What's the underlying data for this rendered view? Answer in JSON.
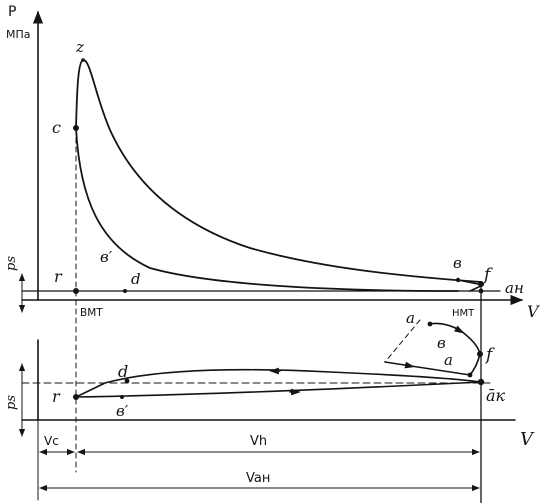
{
  "labels": {
    "p_axis": "P",
    "p_unit": "МПа",
    "v_axis_top": "V",
    "v_axis_bottom": "V",
    "z": "z",
    "c": "c",
    "r_top": "r",
    "b_prime_top": "в′",
    "d_top": "d",
    "b_top": "в",
    "f_top": "f",
    "a_n_top": "aн",
    "vmt": "ВМТ",
    "nmt": "НМТ",
    "ps_top": "ps",
    "a_inset": "a",
    "b_inset": "в",
    "a_inset2": "a",
    "f_inset": "f",
    "d_bottom": "d",
    "r_bottom": "r",
    "b_prime_bottom": "в′",
    "a_k_bottom": "āк",
    "ps_bottom": "ps",
    "vc": "Vc",
    "vh": "Vh",
    "van": "Vaн"
  },
  "colors": {
    "ink": "#141414",
    "background": "#ffffff"
  }
}
